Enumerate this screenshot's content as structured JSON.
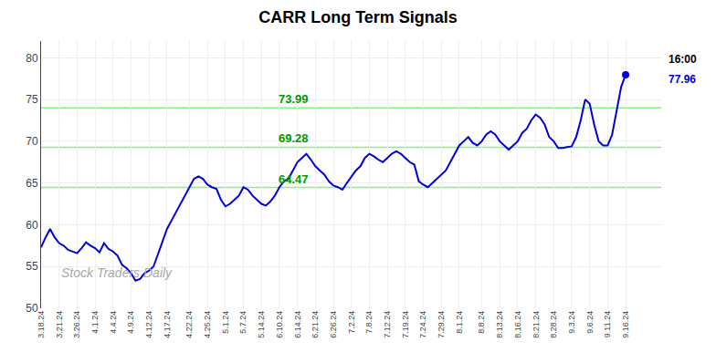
{
  "chart_data": {
    "type": "line",
    "title": "CARR Long Term Signals",
    "color": "#0000dd",
    "grid": true,
    "ylim": [
      50,
      82
    ],
    "yticks": [
      50,
      55,
      60,
      65,
      70,
      75,
      80
    ],
    "categories": [
      "3.18.24",
      null,
      null,
      null,
      "3.21.24",
      null,
      null,
      null,
      "3.26.24",
      null,
      null,
      null,
      "4.1.24",
      null,
      null,
      null,
      "4.4.24",
      null,
      null,
      null,
      "4.9.24",
      null,
      null,
      null,
      "4.12.24",
      null,
      null,
      null,
      "4.17.24",
      null,
      null,
      null,
      null,
      "4.22.24",
      null,
      null,
      null,
      "4.25.24",
      null,
      null,
      null,
      "5.1.24",
      null,
      null,
      null,
      "5.7.24",
      null,
      null,
      null,
      "5.14.24",
      null,
      null,
      null,
      "6.10.24",
      null,
      null,
      null,
      "6.14.24",
      null,
      null,
      null,
      "6.21.24",
      null,
      null,
      null,
      "6.26.24",
      null,
      null,
      null,
      "7.2.24",
      null,
      null,
      null,
      "7.8.24",
      null,
      null,
      null,
      "7.12.24",
      null,
      null,
      null,
      "7.19.24",
      null,
      null,
      null,
      "7.24.24",
      null,
      null,
      null,
      "7.29.24",
      null,
      null,
      null,
      "8.1.24",
      null,
      null,
      null,
      null,
      "8.8.24",
      null,
      null,
      null,
      "8.13.24",
      null,
      null,
      null,
      "8.16.24",
      null,
      null,
      null,
      "8.21.24",
      null,
      null,
      null,
      "8.28.24",
      null,
      null,
      null,
      "9.3.24",
      null,
      null,
      null,
      "9.6.24",
      null,
      null,
      null,
      "9.11.24",
      null,
      null,
      null,
      "9.16.24"
    ],
    "values": [
      57.3,
      58.5,
      59.5,
      58.5,
      57.8,
      57.5,
      57.0,
      56.8,
      56.6,
      57.2,
      57.9,
      57.5,
      57.2,
      56.7,
      57.8,
      57.1,
      56.8,
      56.3,
      55.2,
      54.8,
      54.2,
      53.3,
      53.5,
      54.2,
      54.5,
      55.0,
      56.5,
      58.0,
      59.5,
      60.5,
      61.5,
      62.5,
      63.5,
      64.5,
      65.5,
      65.8,
      65.5,
      64.8,
      64.5,
      64.3,
      63.0,
      62.2,
      62.5,
      63.0,
      63.5,
      64.5,
      64.2,
      63.5,
      63.0,
      62.5,
      62.3,
      62.8,
      63.5,
      64.5,
      65.2,
      65.5,
      66.5,
      67.5,
      68.0,
      68.5,
      67.8,
      67.0,
      66.5,
      66.0,
      65.2,
      64.7,
      64.5,
      64.2,
      65.0,
      65.8,
      66.5,
      67.0,
      68.0,
      68.5,
      68.2,
      67.8,
      67.5,
      68.0,
      68.5,
      68.8,
      68.5,
      68.0,
      67.5,
      67.2,
      65.2,
      64.8,
      64.5,
      65.0,
      65.5,
      66.0,
      66.5,
      67.5,
      68.5,
      69.5,
      70.0,
      70.5,
      69.8,
      69.5,
      70.0,
      70.8,
      71.2,
      70.8,
      70.0,
      69.5,
      69.0,
      69.5,
      70.0,
      71.0,
      71.5,
      72.5,
      73.2,
      72.8,
      72.0,
      70.5,
      70.0,
      69.2,
      69.2,
      69.3,
      69.4,
      70.5,
      72.5,
      75.0,
      74.5,
      72.0,
      70.0,
      69.5,
      69.5,
      70.8,
      73.5,
      76.5,
      77.96
    ],
    "hlines": [
      {
        "value": 73.99,
        "label": "73.99",
        "color": "#88ee88",
        "label_color": "#009900"
      },
      {
        "value": 69.28,
        "label": "69.28",
        "color": "#88ee88",
        "label_color": "#009900"
      },
      {
        "value": 64.47,
        "label": "64.47",
        "color": "#88ee88",
        "label_color": "#009900"
      }
    ],
    "watermark": "Stock Traders Daily",
    "last_time_label": "16:00",
    "last_value_label": "77.96"
  }
}
